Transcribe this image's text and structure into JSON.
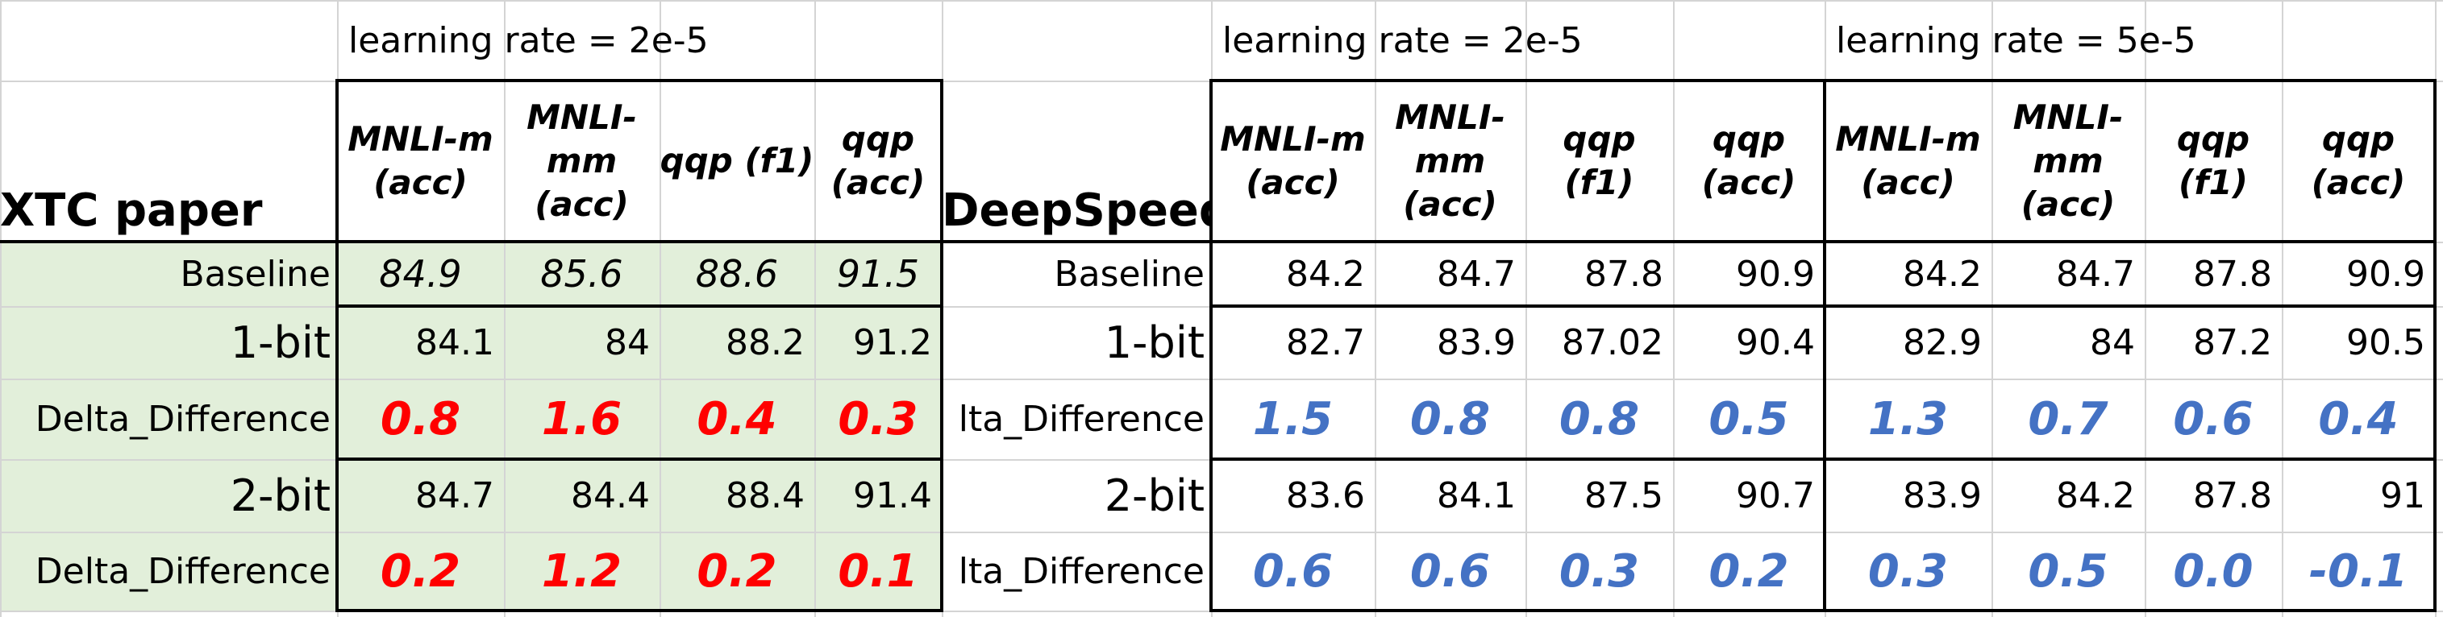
{
  "xtc": {
    "lr_label": "learning rate = 2e-5",
    "title": "XTC paper",
    "headers": [
      "MNLI-m (acc)",
      "MNLI-mm (acc)",
      "qqp (f1)",
      "qqp (acc)"
    ],
    "rows": [
      {
        "label": "Baseline",
        "values": [
          "84.9",
          "85.6",
          "88.6",
          "91.5"
        ]
      },
      {
        "label": "1-bit",
        "values": [
          "84.1",
          "84",
          "88.2",
          "91.2"
        ]
      },
      {
        "label": "Delta_Difference",
        "values": [
          "0.8",
          "1.6",
          "0.4",
          "0.3"
        ]
      },
      {
        "label": "2-bit",
        "values": [
          "84.7",
          "84.4",
          "88.4",
          "91.4"
        ]
      },
      {
        "label": "Delta_Difference",
        "values": [
          "0.2",
          "1.2",
          "0.2",
          "0.1"
        ]
      }
    ]
  },
  "ds": {
    "title": "DeepSpeed",
    "groups": [
      {
        "lr_label": "learning rate = 2e-5",
        "headers": [
          "MNLI-m (acc)",
          "MNLI-mm (acc)",
          "qqp (f1)",
          "qqp (acc)"
        ],
        "rows": [
          {
            "values": [
              "84.2",
              "84.7",
              "87.8",
              "90.9"
            ]
          },
          {
            "values": [
              "82.7",
              "83.9",
              "87.02",
              "90.4"
            ]
          },
          {
            "values": [
              "1.5",
              "0.8",
              "0.8",
              "0.5"
            ]
          },
          {
            "values": [
              "83.6",
              "84.1",
              "87.5",
              "90.7"
            ]
          },
          {
            "values": [
              "0.6",
              "0.6",
              "0.3",
              "0.2"
            ]
          }
        ]
      },
      {
        "lr_label": "learning rate = 5e-5",
        "headers": [
          "MNLI-m (acc)",
          "MNLI-mm (acc)",
          "qqp (f1)",
          "qqp (acc)"
        ],
        "rows": [
          {
            "values": [
              "84.2",
              "84.7",
              "87.8",
              "90.9"
            ]
          },
          {
            "values": [
              "82.9",
              "84",
              "87.2",
              "90.5"
            ]
          },
          {
            "values": [
              "1.3",
              "0.7",
              "0.6",
              "0.4"
            ]
          },
          {
            "values": [
              "83.9",
              "84.2",
              "87.8",
              "91"
            ]
          },
          {
            "values": [
              "0.3",
              "0.5",
              "0.0",
              "-0.1"
            ]
          }
        ]
      }
    ],
    "row_labels": [
      "Baseline",
      "1-bit",
      "lta_Difference",
      "2-bit",
      "lta_Difference"
    ]
  },
  "colors": {
    "red": "#ff0000",
    "blue": "#4472c4",
    "green_fill": "#e2efda"
  }
}
